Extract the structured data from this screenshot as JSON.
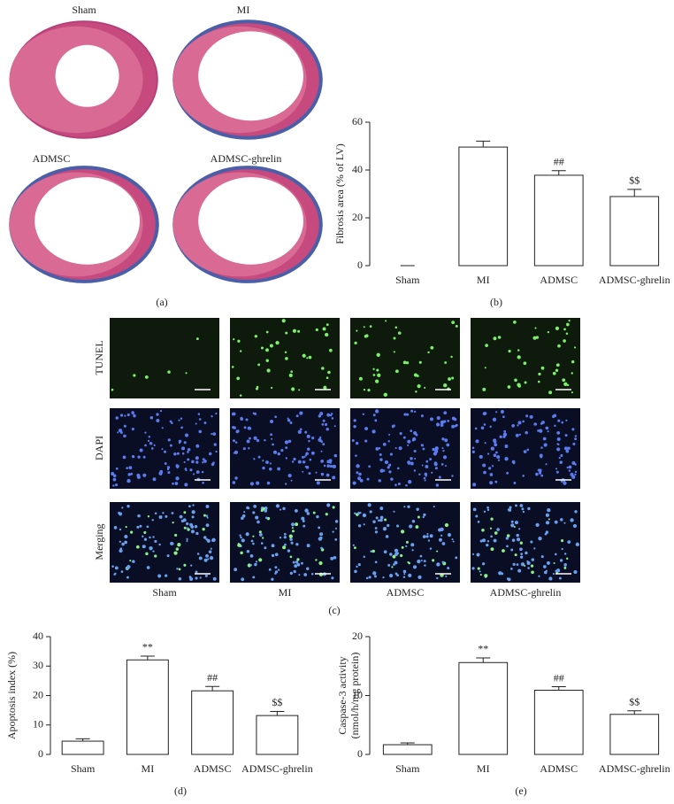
{
  "panel_a": {
    "labels": [
      "Sham",
      "MI",
      "ADMSC",
      "ADMSC-ghrelin"
    ],
    "caption": "(a)"
  },
  "panel_c": {
    "row_labels": [
      "TUNEL",
      "DAPI",
      "Merging"
    ],
    "column_labels": [
      "Sham",
      "MI",
      "ADMSC",
      "ADMSC-ghrelin"
    ],
    "caption": "(c)"
  },
  "chart_data": [
    {
      "type": "bar",
      "caption": "(b)",
      "y_label": "Fibrosis area (% of LV)",
      "categories": [
        "Sham",
        "MI",
        "ADMSC",
        "ADMSC-ghrelin"
      ],
      "values": [
        0,
        49.6,
        37.8,
        28.9
      ],
      "errors": [
        0,
        2.5,
        1.9,
        3
      ],
      "annotations": [
        null,
        null,
        "##",
        "$$"
      ],
      "color": "#ffffff",
      "ylim": [
        0,
        60
      ],
      "yticks": [
        0,
        20,
        40,
        60
      ]
    },
    {
      "type": "bar",
      "caption": "(d)",
      "y_label": "Apoptosis index (%)",
      "categories": [
        "Sham",
        "MI",
        "ADMSC",
        "ADMSC-ghrelin"
      ],
      "values": [
        4.5,
        32.1,
        21.6,
        13.2
      ],
      "errors": [
        0.8,
        1.3,
        1.5,
        1.4
      ],
      "annotations": [
        null,
        "**",
        "##",
        "$$"
      ],
      "color": "#ffffff",
      "ylim": [
        0,
        40
      ],
      "yticks": [
        0,
        10,
        20,
        30,
        40
      ]
    },
    {
      "type": "bar",
      "caption": "(e)",
      "y_label": [
        "Caspase-3 activity",
        "(nmol/h/mg protein)"
      ],
      "categories": [
        "Sham",
        "MI",
        "ADMSC",
        "ADMSC-ghrelin"
      ],
      "values": [
        1.65,
        15.6,
        10.9,
        6.8
      ],
      "errors": [
        0.3,
        0.8,
        0.6,
        0.6
      ],
      "annotations": [
        null,
        "**",
        "##",
        "$$"
      ],
      "color": "#ffffff",
      "ylim": [
        0,
        20
      ],
      "yticks": [
        0,
        10,
        20
      ]
    }
  ]
}
